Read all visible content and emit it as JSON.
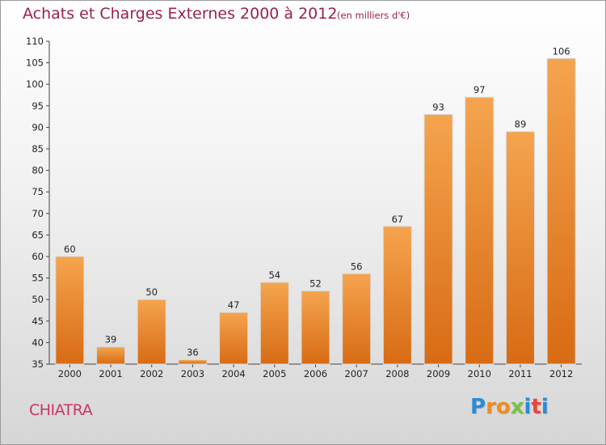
{
  "chart_data": {
    "type": "bar",
    "title": "Achats et Charges Externes 2000 à 2012",
    "subtitle": "(en milliers d'€)",
    "categories": [
      "2000",
      "2001",
      "2002",
      "2003",
      "2004",
      "2005",
      "2006",
      "2007",
      "2008",
      "2009",
      "2010",
      "2011",
      "2012"
    ],
    "values": [
      60,
      39,
      50,
      36,
      47,
      54,
      52,
      56,
      67,
      93,
      97,
      89,
      106
    ],
    "ylim": [
      35,
      110
    ],
    "yticks": [
      35,
      40,
      45,
      50,
      55,
      60,
      65,
      70,
      75,
      80,
      85,
      90,
      95,
      100,
      105,
      110
    ],
    "xlabel": "",
    "ylabel": "",
    "grid": false,
    "bar_color_top": "#f5a44e",
    "bar_color_bottom": "#d86b14"
  },
  "town_name": "CHIATRA",
  "logo": {
    "letters": [
      "P",
      "r",
      "o",
      "x",
      "i",
      "t",
      "i"
    ],
    "colors": [
      "#2a8bd6",
      "#f08c1e",
      "#f08c1e",
      "#7ac143",
      "#2a8bd6",
      "#e8463a",
      "#2a8bd6"
    ]
  }
}
